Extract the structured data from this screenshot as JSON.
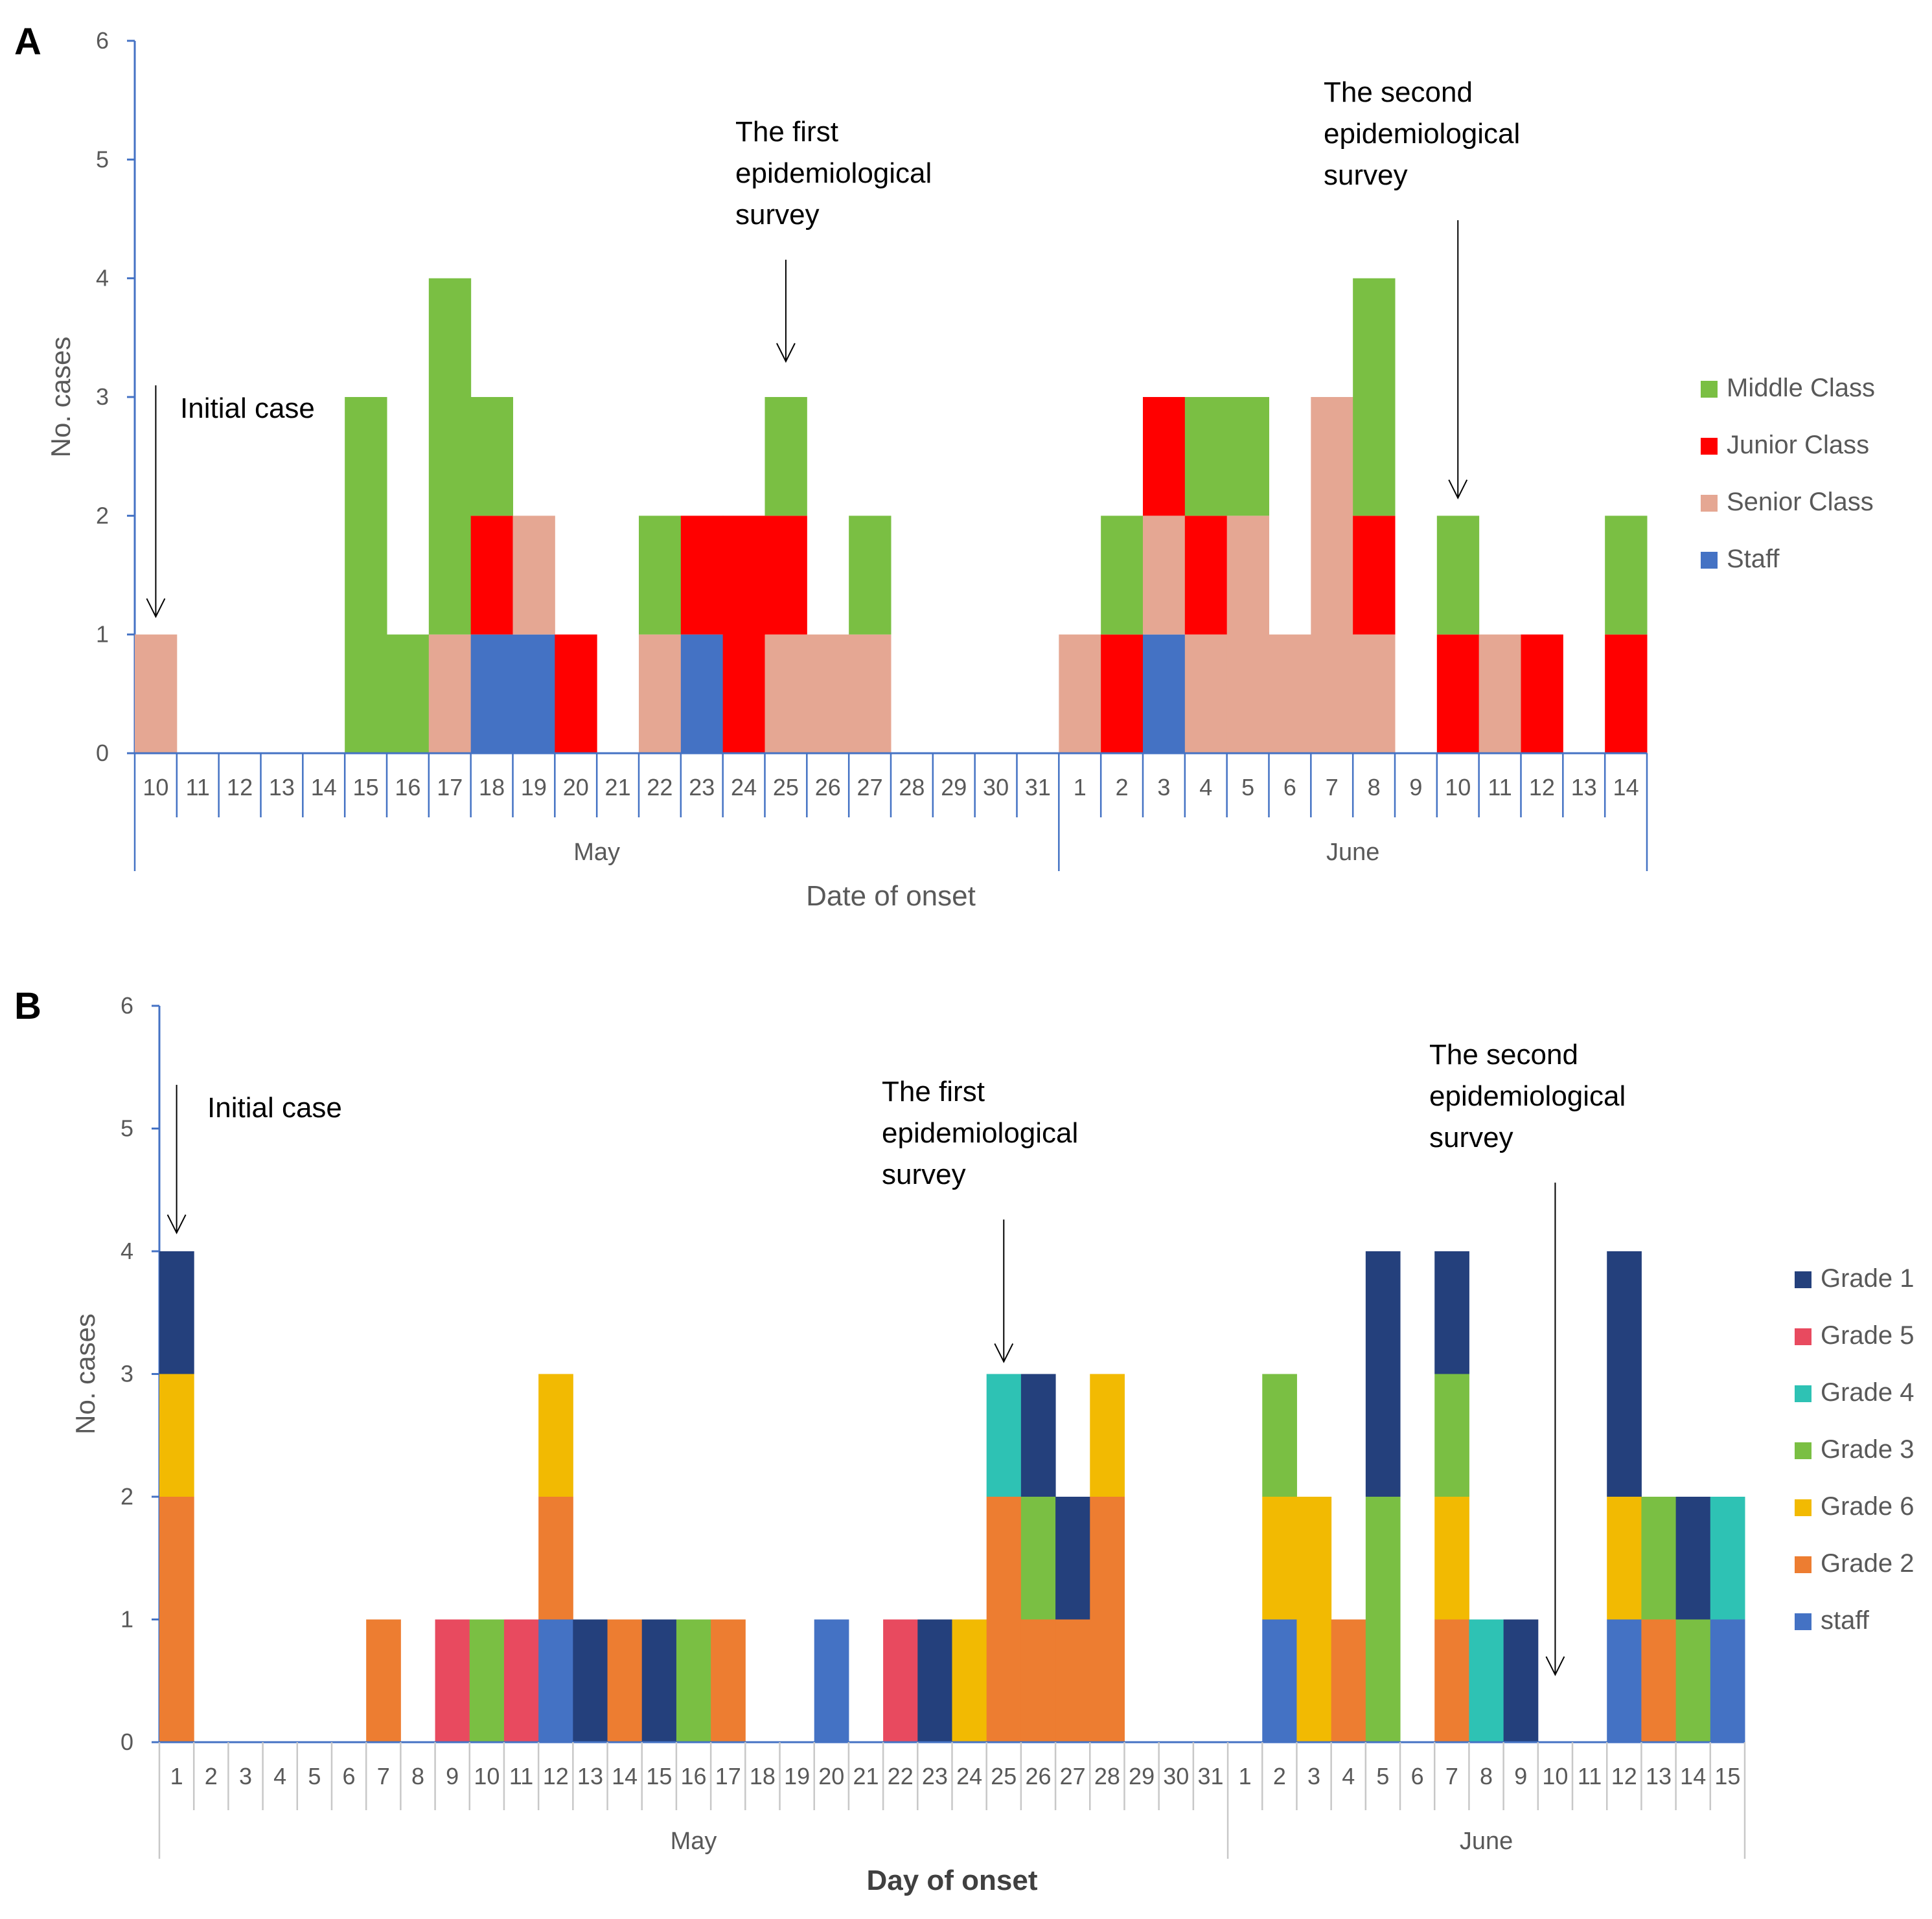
{
  "chart_data": [
    {
      "type": "bar",
      "stacked": true,
      "panel_label": "A",
      "ylabel": "No. cases",
      "xlabel": "Date of onset",
      "ylim": [
        0,
        6
      ],
      "yticks": [
        "0",
        "1",
        "2",
        "3",
        "4",
        "5",
        "6"
      ],
      "categories": [
        "10",
        "11",
        "12",
        "13",
        "14",
        "15",
        "16",
        "17",
        "18",
        "19",
        "20",
        "21",
        "22",
        "23",
        "24",
        "25",
        "26",
        "27",
        "28",
        "29",
        "30",
        "31",
        "1",
        "2",
        "3",
        "4",
        "5",
        "6",
        "7",
        "8",
        "9",
        "10",
        "11",
        "12",
        "13",
        "14"
      ],
      "groups": [
        {
          "label": "May",
          "start": 0,
          "end": 21
        },
        {
          "label": "June",
          "start": 22,
          "end": 35
        }
      ],
      "series": [
        {
          "name": "Staff",
          "color": "#4472C4",
          "values": [
            0,
            0,
            0,
            0,
            0,
            0,
            0,
            0,
            1,
            1,
            0,
            0,
            0,
            1,
            0,
            0,
            0,
            0,
            0,
            0,
            0,
            0,
            0,
            0,
            1,
            0,
            0,
            0,
            0,
            0,
            0,
            0,
            0,
            0,
            0,
            0
          ]
        },
        {
          "name": "Senior Class",
          "color": "#E5A793",
          "values": [
            1,
            0,
            0,
            0,
            0,
            0,
            0,
            1,
            0,
            1,
            0,
            0,
            1,
            0,
            0,
            1,
            1,
            1,
            0,
            0,
            0,
            0,
            1,
            0,
            1,
            1,
            2,
            1,
            3,
            1,
            0,
            0,
            1,
            0,
            0,
            0
          ]
        },
        {
          "name": "Junior Class",
          "color": "#FF0000",
          "values": [
            0,
            0,
            0,
            0,
            0,
            0,
            0,
            0,
            1,
            0,
            1,
            0,
            0,
            1,
            2,
            1,
            0,
            0,
            0,
            0,
            0,
            0,
            0,
            1,
            1,
            1,
            0,
            0,
            0,
            1,
            0,
            1,
            0,
            1,
            0,
            1
          ]
        },
        {
          "name": "Middle Class",
          "color": "#7ABF43",
          "values": [
            0,
            0,
            0,
            0,
            0,
            3,
            1,
            3,
            1,
            0,
            0,
            0,
            1,
            0,
            0,
            1,
            0,
            1,
            0,
            0,
            0,
            0,
            0,
            1,
            0,
            1,
            1,
            0,
            0,
            2,
            0,
            1,
            0,
            0,
            0,
            1
          ]
        }
      ],
      "legend": [
        {
          "name": "Middle Class",
          "color": "#7ABF43"
        },
        {
          "name": "Junior Class",
          "color": "#FF0000"
        },
        {
          "name": "Senior Class",
          "color": "#E5A793"
        },
        {
          "name": "Staff",
          "color": "#4472C4"
        }
      ],
      "annotations": [
        {
          "lines": [
            "Initial case"
          ],
          "category_index": 0,
          "arrow_tip_value": 1.15
        },
        {
          "lines": [
            "The first",
            "epidemiological",
            "survey"
          ],
          "category_index": 15,
          "arrow_tip_value": 3.3
        },
        {
          "lines": [
            "The second",
            "epidemiological",
            "survey"
          ],
          "category_index": 31,
          "arrow_tip_value": 2.15
        }
      ],
      "axis_color": "#4472C4"
    },
    {
      "type": "bar",
      "stacked": true,
      "panel_label": "B",
      "ylabel": "No. cases",
      "xlabel": "Day of onset",
      "ylim": [
        0,
        6
      ],
      "yticks": [
        "0",
        "1",
        "2",
        "3",
        "4",
        "5",
        "6"
      ],
      "categories": [
        "1",
        "2",
        "3",
        "4",
        "5",
        "6",
        "7",
        "8",
        "9",
        "10",
        "11",
        "12",
        "13",
        "14",
        "15",
        "16",
        "17",
        "18",
        "19",
        "20",
        "21",
        "22",
        "23",
        "24",
        "25",
        "26",
        "27",
        "28",
        "29",
        "30",
        "31",
        "1",
        "2",
        "3",
        "4",
        "5",
        "6",
        "7",
        "8",
        "9",
        "10",
        "11",
        "12",
        "13",
        "14",
        "15"
      ],
      "groups": [
        {
          "label": "May",
          "start": 0,
          "end": 30
        },
        {
          "label": "June",
          "start": 31,
          "end": 45
        }
      ],
      "series": [
        {
          "name": "staff",
          "color": "#4472C4",
          "values": [
            0,
            0,
            0,
            0,
            0,
            0,
            0,
            0,
            0,
            0,
            0,
            1,
            0,
            0,
            0,
            0,
            0,
            0,
            0,
            1,
            0,
            0,
            0,
            0,
            0,
            0,
            0,
            0,
            0,
            0,
            0,
            0,
            1,
            0,
            0,
            0,
            0,
            0,
            0,
            0,
            0,
            0,
            1,
            0,
            0,
            1
          ]
        },
        {
          "name": "Grade 2",
          "color": "#ED7D31",
          "values": [
            2,
            0,
            0,
            0,
            0,
            0,
            1,
            0,
            0,
            0,
            0,
            1,
            0,
            1,
            0,
            0,
            1,
            0,
            0,
            0,
            0,
            0,
            0,
            0,
            2,
            1,
            1,
            2,
            0,
            0,
            0,
            0,
            0,
            0,
            1,
            0,
            0,
            1,
            0,
            0,
            0,
            0,
            0,
            1,
            0,
            0
          ]
        },
        {
          "name": "Grade 6",
          "color": "#F2BA02",
          "values": [
            1,
            0,
            0,
            0,
            0,
            0,
            0,
            0,
            0,
            0,
            0,
            1,
            0,
            0,
            0,
            0,
            0,
            0,
            0,
            0,
            0,
            0,
            0,
            1,
            0,
            0,
            0,
            1,
            0,
            0,
            0,
            0,
            1,
            2,
            0,
            0,
            0,
            1,
            0,
            0,
            0,
            0,
            1,
            0,
            0,
            0
          ]
        },
        {
          "name": "Grade 3",
          "color": "#7ABF43",
          "values": [
            0,
            0,
            0,
            0,
            0,
            0,
            0,
            0,
            0,
            1,
            0,
            0,
            0,
            0,
            0,
            1,
            0,
            0,
            0,
            0,
            0,
            0,
            0,
            0,
            0,
            1,
            0,
            0,
            0,
            0,
            0,
            0,
            1,
            0,
            0,
            2,
            0,
            1,
            0,
            0,
            0,
            0,
            0,
            1,
            1,
            0
          ]
        },
        {
          "name": "Grade 4",
          "color": "#2EC2B4",
          "values": [
            0,
            0,
            0,
            0,
            0,
            0,
            0,
            0,
            0,
            0,
            0,
            0,
            0,
            0,
            0,
            0,
            0,
            0,
            0,
            0,
            0,
            0,
            0,
            0,
            1,
            0,
            0,
            0,
            0,
            0,
            0,
            0,
            0,
            0,
            0,
            0,
            0,
            0,
            1,
            0,
            0,
            0,
            0,
            0,
            0,
            1
          ]
        },
        {
          "name": "Grade 5",
          "color": "#E84A5F",
          "values": [
            0,
            0,
            0,
            0,
            0,
            0,
            0,
            0,
            1,
            0,
            1,
            0,
            0,
            0,
            0,
            0,
            0,
            0,
            0,
            0,
            0,
            1,
            0,
            0,
            0,
            0,
            0,
            0,
            0,
            0,
            0,
            0,
            0,
            0,
            0,
            0,
            0,
            0,
            0,
            0,
            0,
            0,
            0,
            0,
            0,
            0
          ]
        },
        {
          "name": "Grade 1",
          "color": "#24407C",
          "values": [
            1,
            0,
            0,
            0,
            0,
            0,
            0,
            0,
            0,
            0,
            0,
            0,
            1,
            0,
            1,
            0,
            0,
            0,
            0,
            0,
            0,
            0,
            1,
            0,
            0,
            1,
            1,
            0,
            0,
            0,
            0,
            0,
            0,
            0,
            0,
            2,
            0,
            1,
            0,
            1,
            0,
            0,
            2,
            0,
            1,
            0
          ]
        }
      ],
      "legend": [
        {
          "name": "Grade 1",
          "color": "#24407C"
        },
        {
          "name": "Grade 5",
          "color": "#E84A5F"
        },
        {
          "name": "Grade 4",
          "color": "#2EC2B4"
        },
        {
          "name": "Grade 3",
          "color": "#7ABF43"
        },
        {
          "name": "Grade 6",
          "color": "#F2BA02"
        },
        {
          "name": "Grade 2",
          "color": "#ED7D31"
        },
        {
          "name": "staff",
          "color": "#4472C4"
        }
      ],
      "annotations": [
        {
          "lines": [
            "Initial case"
          ],
          "category_index": 0,
          "arrow_tip_value": 4.15
        },
        {
          "lines": [
            "The first",
            "epidemiological",
            "survey"
          ],
          "category_index": 24,
          "arrow_tip_value": 3.1
        },
        {
          "lines": [
            "The second",
            "epidemiological",
            "survey"
          ],
          "category_index": 40,
          "arrow_tip_value": 0.55
        }
      ],
      "axis_color": "#4472C4"
    }
  ]
}
